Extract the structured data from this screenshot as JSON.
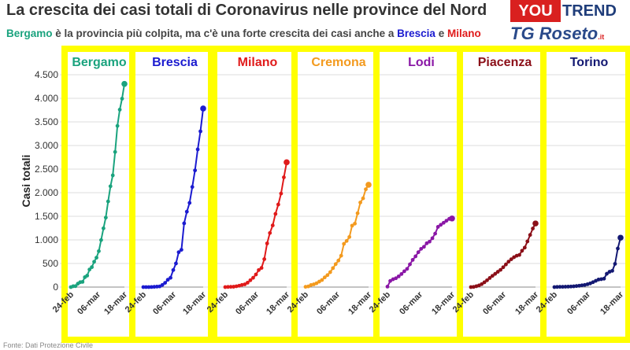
{
  "header": {
    "title": "La crescita dei casi totali di Coronavirus nelle province del Nord",
    "subtitle_parts": [
      "Bergamo",
      " è la provincia più colpita, ma c'è una forte crescita dei casi anche a ",
      "Brescia",
      " e ",
      "Milano"
    ]
  },
  "logos": {
    "you": "YOU",
    "trend": "TREND",
    "tg": "TG Roseto",
    "tg_suffix": ".it"
  },
  "source": "Fonte: Dati Protezione Civile",
  "colors": {
    "frame": "#ffff00",
    "axis_text": "#333333"
  },
  "chart_data": {
    "type": "line",
    "ylabel": "Casi totali",
    "ylim": [
      0,
      4500
    ],
    "yticks": [
      0,
      500,
      1000,
      1500,
      2000,
      2500,
      3000,
      3500,
      4000,
      4500
    ],
    "ytick_labels": [
      "0",
      "500",
      "1.000",
      "1.500",
      "2.000",
      "2.500",
      "3.000",
      "3.500",
      "4.000",
      "4.500"
    ],
    "xtick_labels": [
      "24-feb",
      "06-mar",
      "18-mar"
    ],
    "grid": true,
    "series": [
      {
        "name": "Bergamo",
        "color": "#1aa37e",
        "values": [
          0,
          18,
          20,
          72,
          103,
          110,
          209,
          243,
          372,
          423,
          537,
          623,
          761,
          997,
          1245,
          1472,
          1815,
          2136,
          2368,
          2864,
          3416,
          3760,
          3993,
          4305
        ]
      },
      {
        "name": "Brescia",
        "color": "#1b1bd0",
        "values": [
          0,
          0,
          0,
          2,
          5,
          10,
          14,
          45,
          90,
          155,
          197,
          361,
          501,
          739,
          790,
          1351,
          1598,
          1784,
          2122,
          2473,
          2918,
          3300,
          3784
        ]
      },
      {
        "name": "Milano",
        "color": "#e01a1a",
        "values": [
          0,
          3,
          6,
          7,
          17,
          29,
          46,
          58,
          93,
          145,
          197,
          267,
          361,
          406,
          592,
          925,
          1146,
          1307,
          1551,
          1750,
          1983,
          2326,
          2644
        ]
      },
      {
        "name": "Cremona",
        "color": "#f39a1e",
        "values": [
          6,
          14,
          44,
          58,
          81,
          116,
          150,
          206,
          254,
          316,
          402,
          487,
          562,
          665,
          916,
          978,
          1061,
          1302,
          1344,
          1565,
          1792,
          1881,
          2073,
          2167
        ]
      },
      {
        "name": "Lodi",
        "color": "#8a17a6",
        "values": [
          10,
          130,
          166,
          187,
          227,
          277,
          335,
          386,
          482,
          577,
          651,
          739,
          811,
          853,
          928,
          963,
          1035,
          1133,
          1276,
          1320,
          1362,
          1405,
          1445,
          1454
        ]
      },
      {
        "name": "Piacenza",
        "color": "#8b0f18",
        "values": [
          0,
          4,
          18,
          35,
          62,
          101,
          144,
          193,
          238,
          280,
          324,
          365,
          420,
          480,
          540,
          590,
          633,
          664,
          681,
          770,
          836,
          968,
          1105,
          1241,
          1348
        ]
      },
      {
        "name": "Torino",
        "color": "#131872",
        "values": [
          0,
          3,
          5,
          6,
          8,
          10,
          12,
          16,
          22,
          28,
          38,
          45,
          60,
          78,
          104,
          132,
          159,
          168,
          178,
          282,
          324,
          344,
          492,
          818,
          1046
        ]
      }
    ]
  }
}
